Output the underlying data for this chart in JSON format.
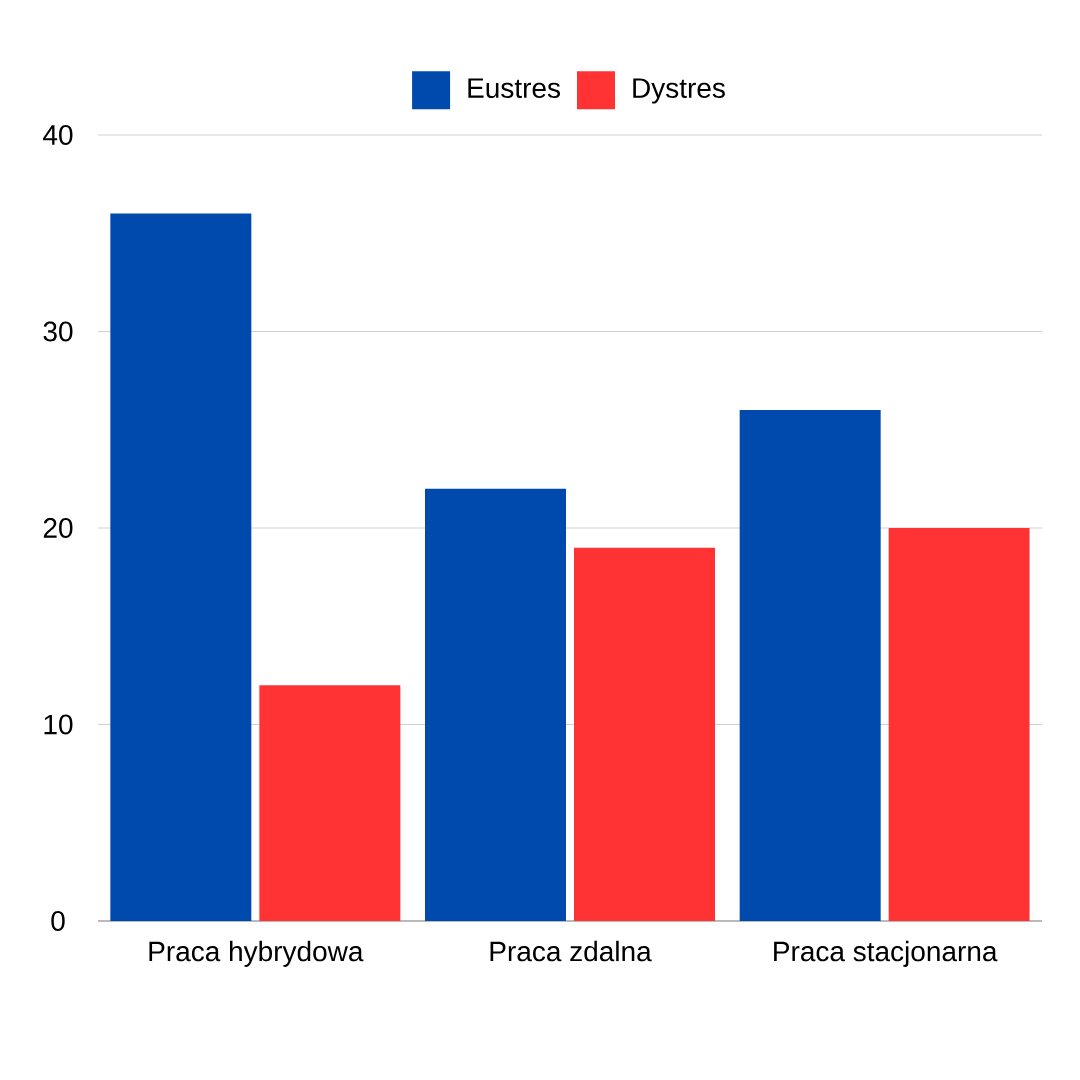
{
  "chart_data": {
    "type": "bar",
    "categories": [
      "Praca hybrydowa",
      "Praca zdalna",
      "Praca stacjonarna"
    ],
    "series": [
      {
        "name": "Eustres",
        "color": "#004aad",
        "values": [
          36,
          22,
          26
        ]
      },
      {
        "name": "Dystres",
        "color": "#ff3333",
        "values": [
          12,
          19,
          20
        ]
      }
    ],
    "ylim": [
      0,
      40
    ],
    "yticks": [
      0,
      10,
      20,
      30,
      40
    ],
    "grid": "y",
    "legend": "top"
  }
}
